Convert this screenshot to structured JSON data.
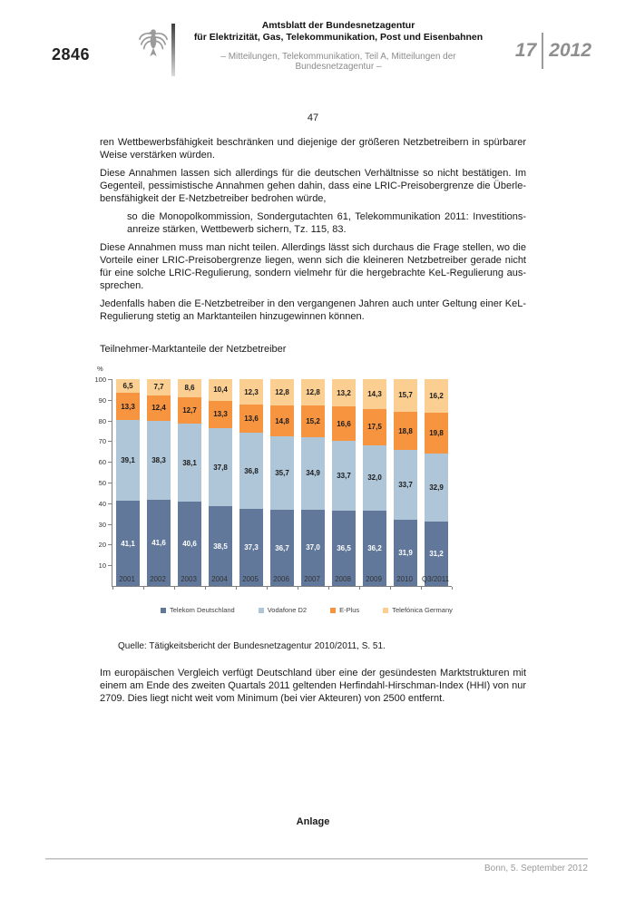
{
  "header": {
    "page_code": "2846",
    "title_line1": "Amtsblatt der Bundesnetzagentur",
    "title_line2": "für Elektrizität, Gas, Telekommunikation, Post und Eisenbahnen",
    "subtitle": "– Mitteilungen, Telekommunikation, Teil A, Mitteilungen der Bundesnetzagentur –",
    "issue_number": "17",
    "issue_year": "2012"
  },
  "document": {
    "page_number": "47",
    "paragraph1": "ren Wettbewerbsfähigkeit beschränken und diejenige der größeren Netzbetreibern in spürbarer Weise verstärken würden.",
    "paragraph2": "Diese Annahmen lassen sich allerdings für die deutschen Verhältnisse so nicht bestätigen. Im Gegenteil, pessimistische Annahmen gehen dahin, dass eine LRIC-Preisobergrenze die Überle­bensfähigkeit der E-Netzbetreiber bedrohen würde,",
    "quote": "so die Monopolkommission, Sondergutachten 61, Telekommunikation 2011: Investitions­anreize stärken, Wettbewerb sichern, Tz. 115, 83.",
    "paragraph3": "Diese Annahmen muss man nicht teilen. Allerdings lässt sich durchaus die Frage stellen, wo die Vorteile einer LRIC-Preisobergrenze liegen, wenn sich die kleineren Netzbetreiber gerade nicht für eine solche LRIC-Regulierung, sondern vielmehr für die hergebrachte KeL-Regulierung aus­sprechen.",
    "paragraph4": "Jedenfalls haben die E-Netzbetreiber in den vergangenen Jahren auch unter Geltung einer KeL-Regulierung stetig an Marktanteilen hinzugewinnen können.",
    "chart_caption": "Teilnehmer-Marktanteile der Netzbetreiber",
    "source_note": "Quelle: Tätigkeitsbericht der Bundesnetzagentur 2010/2011, S. 51.",
    "paragraph5": "Im europäischen Vergleich verfügt Deutschland über eine der gesündesten Marktstrukturen mit einem am Ende des zweiten Quartals 2011 geltenden Herfindahl-Hirschman-Index (HHI) von nur 2709. Dies liegt nicht weit vom Minimum (bei vier Akteuren) von 2500 entfernt.",
    "annex_label": "Anlage"
  },
  "footer": {
    "dateline": "Bonn, 5. September 2012"
  },
  "chart_data": {
    "type": "bar",
    "stacked": true,
    "title": "Teilnehmer-Marktanteile der Netzbetreiber",
    "categories": [
      "2001",
      "2002",
      "2003",
      "2004",
      "2005",
      "2006",
      "2007",
      "2008",
      "2009",
      "2010",
      "Q3/2011"
    ],
    "series": [
      {
        "name": "Telekom Deutschland",
        "color": "#61789B",
        "label_color": "#ffffff",
        "values": [
          41.1,
          41.6,
          40.6,
          38.5,
          37.3,
          36.7,
          37.0,
          36.5,
          36.2,
          31.9,
          31.2
        ]
      },
      {
        "name": "Vodafone D2",
        "color": "#AFC6D9",
        "label_color": "#1a1a1a",
        "values": [
          39.1,
          38.3,
          38.1,
          37.8,
          36.8,
          35.7,
          34.9,
          33.7,
          32.0,
          33.7,
          32.9
        ]
      },
      {
        "name": "E-Plus",
        "color": "#F79440",
        "label_color": "#1a1a1a",
        "values": [
          13.3,
          12.4,
          12.7,
          13.3,
          13.6,
          14.8,
          15.2,
          16.6,
          17.5,
          18.8,
          19.8
        ]
      },
      {
        "name": "Telefónica Germany",
        "color": "#FBCE92",
        "label_color": "#1a1a1a",
        "values": [
          6.5,
          7.7,
          8.6,
          10.4,
          12.3,
          12.8,
          12.8,
          13.2,
          14.3,
          15.7,
          16.2
        ]
      }
    ],
    "xlabel": "",
    "ylabel": "%",
    "ylim": [
      0,
      100
    ],
    "ytick_step": 10,
    "grid": false,
    "legend_position": "bottom",
    "decimal_separator": ","
  }
}
